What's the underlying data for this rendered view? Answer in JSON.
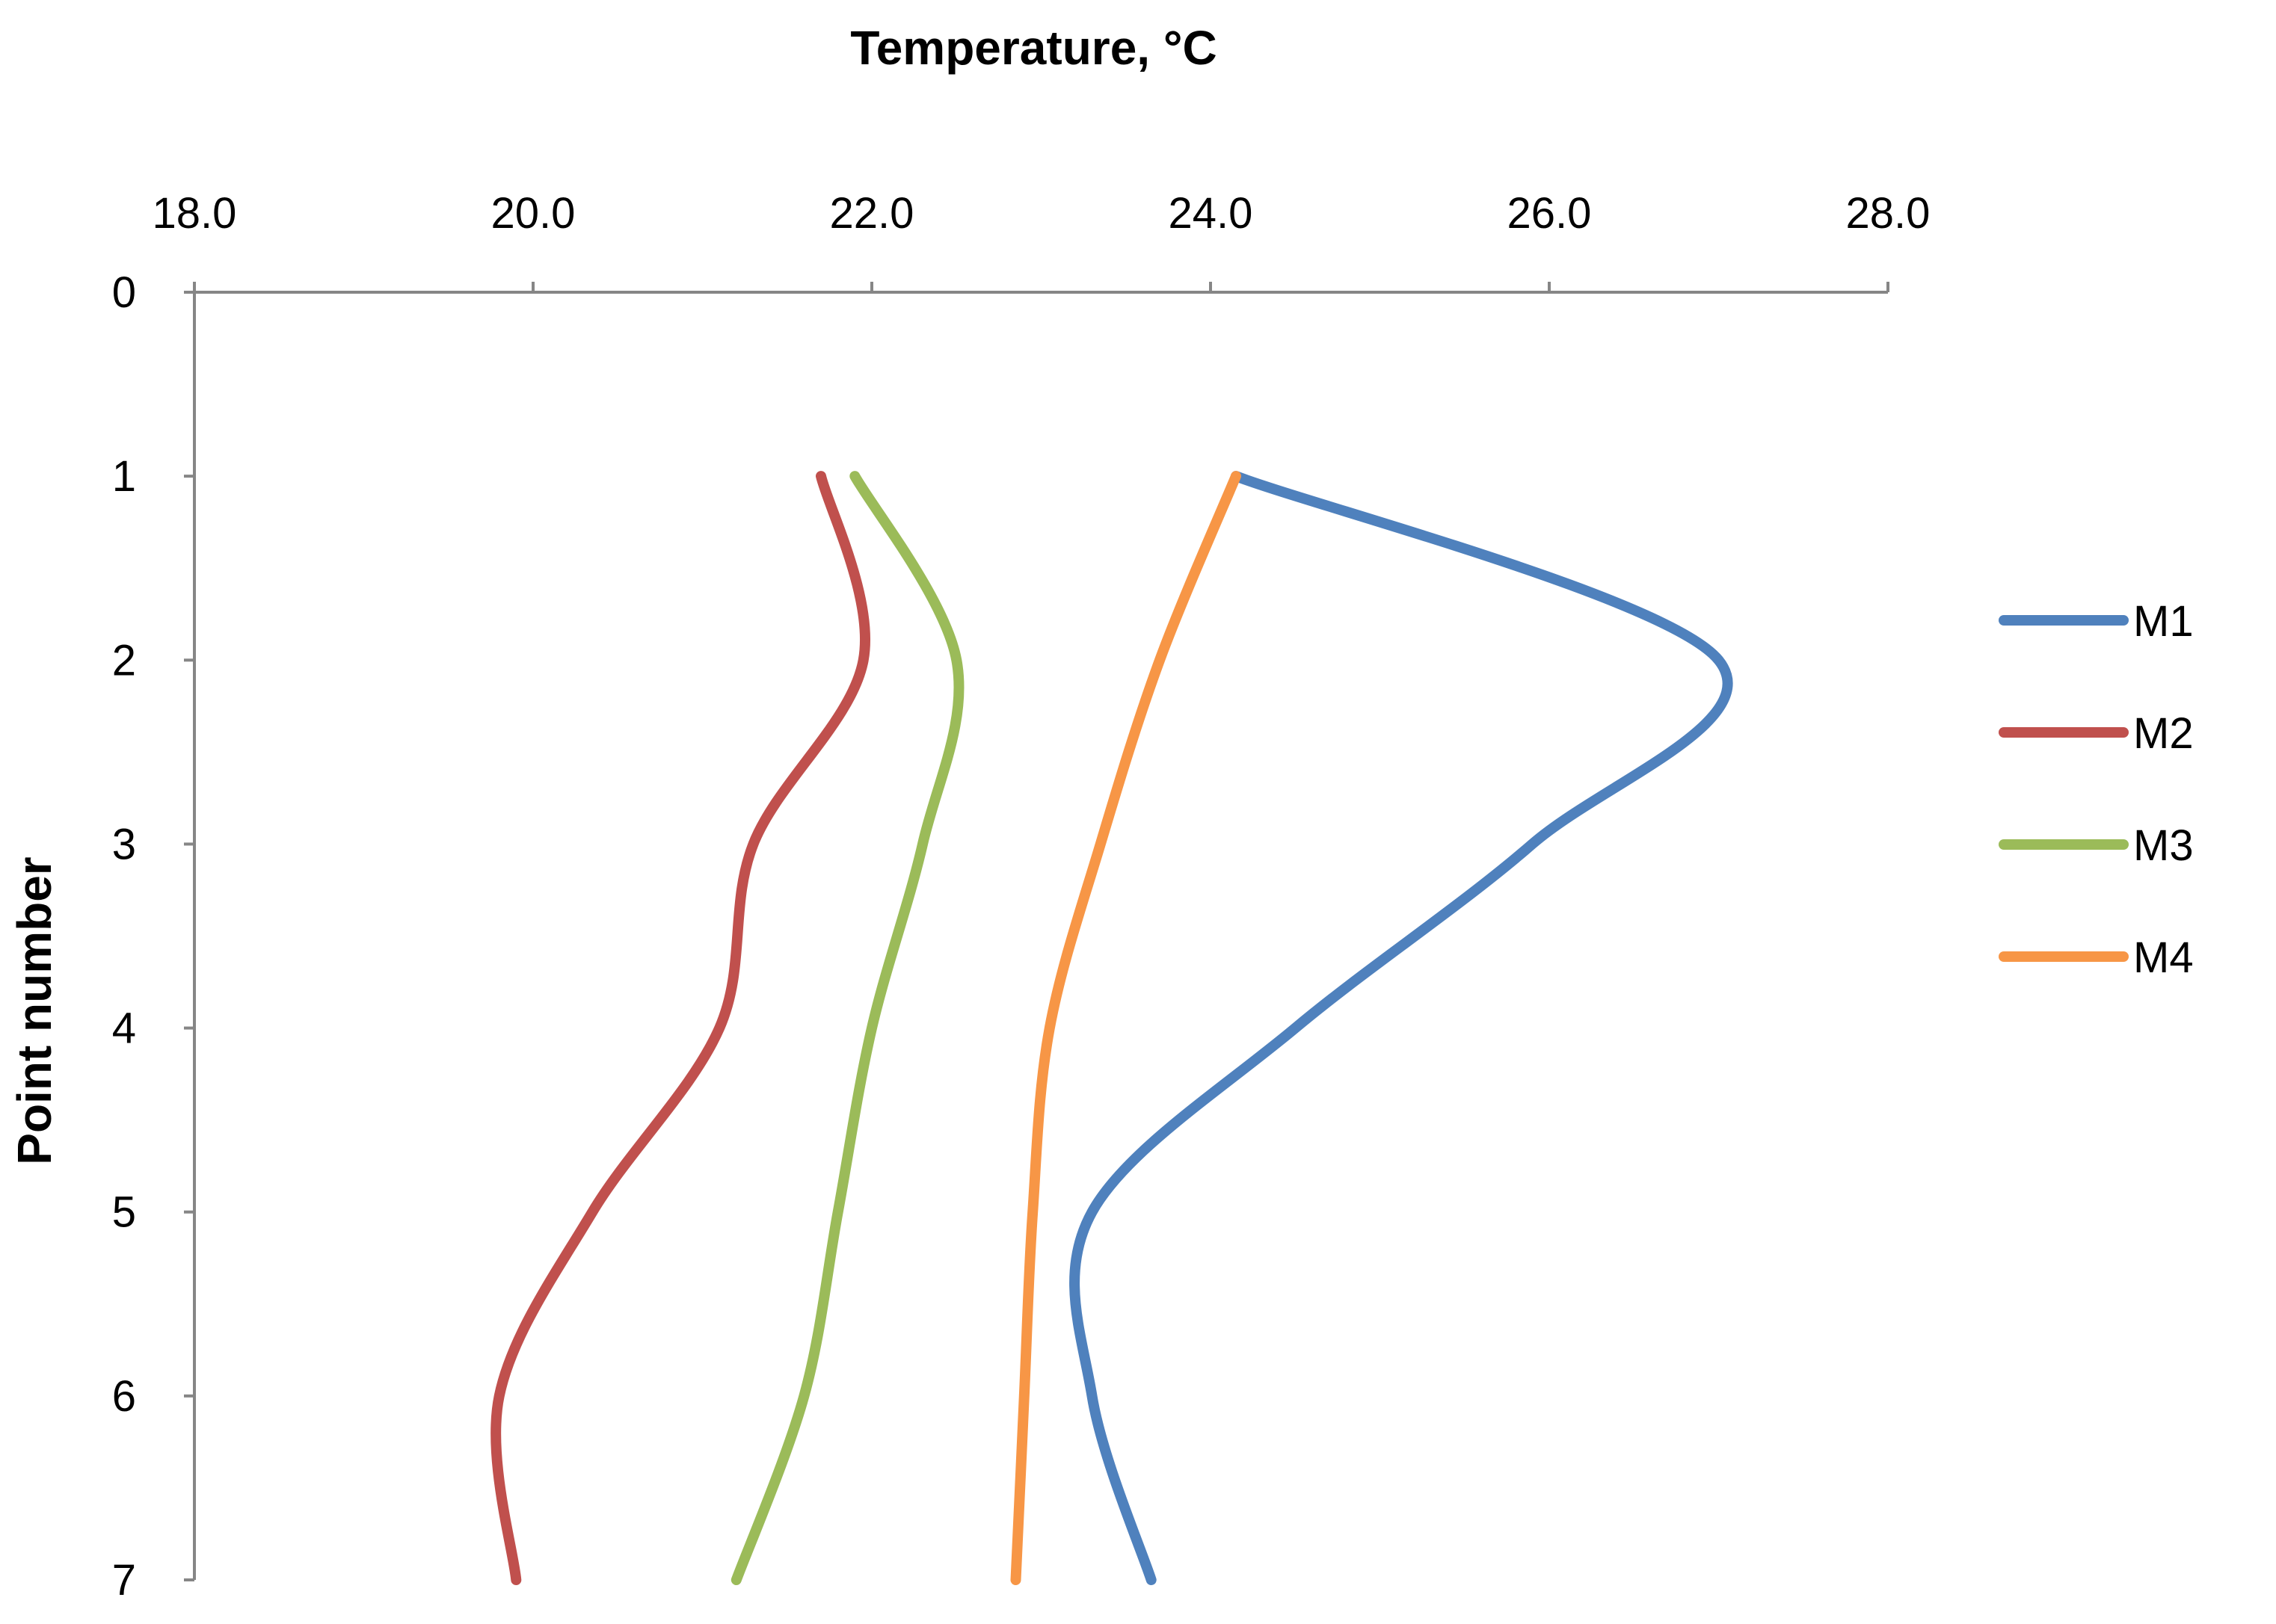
{
  "chart_data": {
    "type": "line",
    "title": "",
    "xlabel": "Temperature, °C",
    "ylabel": "Point number",
    "x_axis_position": "top",
    "y_axis_inverted": true,
    "xlim": [
      18.0,
      28.0
    ],
    "ylim": [
      0,
      7
    ],
    "x_ticks": [
      "18.0",
      "20.0",
      "22.0",
      "24.0",
      "26.0",
      "28.0"
    ],
    "y_ticks": [
      "0",
      "1",
      "2",
      "3",
      "4",
      "5",
      "6",
      "7"
    ],
    "grid": false,
    "legend_position": "right",
    "smooth": true,
    "series": [
      {
        "name": "M1",
        "color": "#4F81BD",
        "points": [
          [
            24.15,
            1
          ],
          [
            27.0,
            2
          ],
          [
            25.9,
            3
          ],
          [
            24.5,
            4
          ],
          [
            23.3,
            5
          ],
          [
            23.3,
            6
          ],
          [
            23.65,
            7
          ]
        ]
      },
      {
        "name": "M2",
        "color": "#C0504D",
        "points": [
          [
            21.7,
            1
          ],
          [
            21.95,
            2
          ],
          [
            21.3,
            3
          ],
          [
            21.1,
            4
          ],
          [
            20.35,
            5
          ],
          [
            19.8,
            6
          ],
          [
            19.9,
            7
          ]
        ]
      },
      {
        "name": "M3",
        "color": "#9BBB59",
        "points": [
          [
            21.9,
            1
          ],
          [
            22.5,
            2
          ],
          [
            22.3,
            3
          ],
          [
            22.0,
            4
          ],
          [
            21.8,
            5
          ],
          [
            21.6,
            6
          ],
          [
            21.2,
            7
          ]
        ]
      },
      {
        "name": "M4",
        "color": "#F79646",
        "points": [
          [
            24.15,
            1
          ],
          [
            23.7,
            2
          ],
          [
            23.35,
            3
          ],
          [
            23.05,
            4
          ],
          [
            22.95,
            5
          ],
          [
            22.9,
            6
          ],
          [
            22.85,
            7
          ]
        ]
      }
    ]
  }
}
